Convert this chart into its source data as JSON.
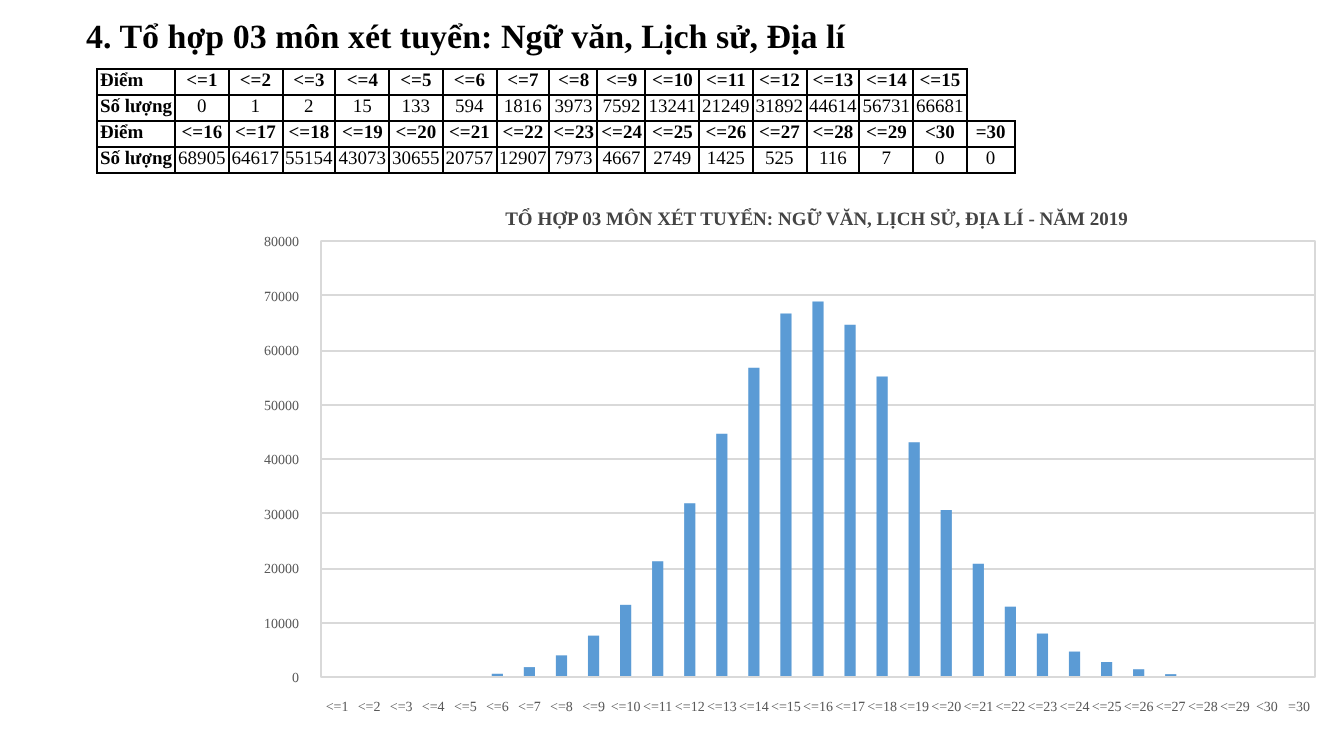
{
  "chart_data": [
    {
      "type": "other",
      "title": "4. Tổ hợp 03 môn xét tuyển: Ngữ văn, Lịch sử, Địa lí",
      "annotations": [
        "Điểm",
        "Số lượng"
      ],
      "categories": [
        "<=1",
        "<=2",
        "<=3",
        "<=4",
        "<=5",
        "<=6",
        "<=7",
        "<=8",
        "<=9",
        "<=10",
        "<=11",
        "<=12",
        "<=13",
        "<=14",
        "<=15",
        "<=16",
        "<=17",
        "<=18",
        "<=19",
        "<=20",
        "<=21",
        "<=22",
        "<=23",
        "<=24",
        "<=25",
        "<=26",
        "<=27",
        "<=28",
        "<=29",
        "<30",
        "=30"
      ],
      "values": [
        0,
        1,
        2,
        15,
        133,
        594,
        1816,
        3973,
        7592,
        13241,
        21249,
        31892,
        44614,
        56731,
        66681,
        68905,
        64617,
        55154,
        43073,
        30655,
        20757,
        12907,
        7973,
        4667,
        2749,
        1425,
        525,
        116,
        7,
        0,
        0
      ],
      "data_labels": true
    },
    {
      "type": "bar",
      "title": "TỔ HỢP 03 MÔN XÉT TUYỂN: NGỮ VĂN, LỊCH SỬ, ĐỊA LÍ - NĂM 2019",
      "categories": [
        "<=1",
        "<=2",
        "<=3",
        "<=4",
        "<=5",
        "<=6",
        "<=7",
        "<=8",
        "<=9",
        "<=10",
        "<=11",
        "<=12",
        "<=13",
        "<=14",
        "<=15",
        "<=16",
        "<=17",
        "<=18",
        "<=19",
        "<=20",
        "<=21",
        "<=22",
        "<=23",
        "<=24",
        "<=25",
        "<=26",
        "<=27",
        "<=28",
        "<=29",
        "<30",
        "=30"
      ],
      "values": [
        0,
        1,
        2,
        15,
        133,
        594,
        1816,
        3973,
        7592,
        13241,
        21249,
        31892,
        44614,
        56731,
        66681,
        68905,
        64617,
        55154,
        43073,
        30655,
        20757,
        12907,
        7973,
        4667,
        2749,
        1425,
        525,
        116,
        7,
        0,
        0
      ],
      "color": "#5b9bd5",
      "ylim": [
        0,
        80000
      ],
      "yticks": [
        0,
        10000,
        20000,
        30000,
        40000,
        50000,
        60000,
        70000,
        80000
      ],
      "grid": "y"
    }
  ]
}
